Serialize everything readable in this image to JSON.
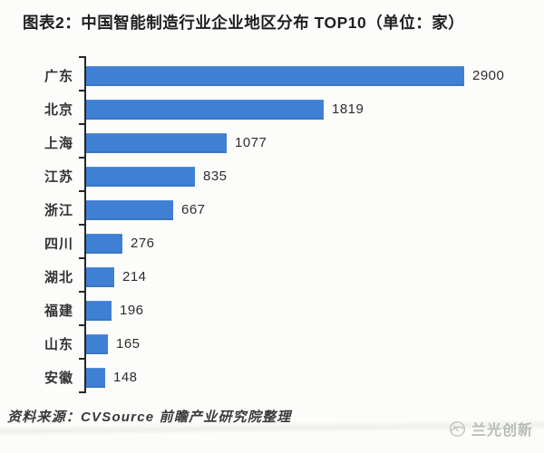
{
  "title": "图表2：中国智能制造行业企业地区分布 TOP10（单位：家）",
  "chart_data": {
    "type": "bar",
    "orientation": "horizontal",
    "title": "图表2：中国智能制造行业企业地区分布 TOP10（单位：家）",
    "categories": [
      "广东",
      "北京",
      "上海",
      "江苏",
      "浙江",
      "四川",
      "湖北",
      "福建",
      "山东",
      "安徽"
    ],
    "values": [
      2900,
      1819,
      1077,
      835,
      667,
      276,
      214,
      196,
      165,
      148
    ],
    "value_max": 2900,
    "xlabel": "",
    "ylabel": "",
    "unit": "家",
    "grid": false,
    "legend": false,
    "bar_color": "#3f80d4",
    "axis_color": "#262626"
  },
  "footer": {
    "source": "资料来源：CVSource  前瞻产业研究院整理"
  },
  "watermark": {
    "icon": "lanGuang-globe-logo-icon",
    "label": "兰光创新",
    "color": "#b6bcb8"
  }
}
